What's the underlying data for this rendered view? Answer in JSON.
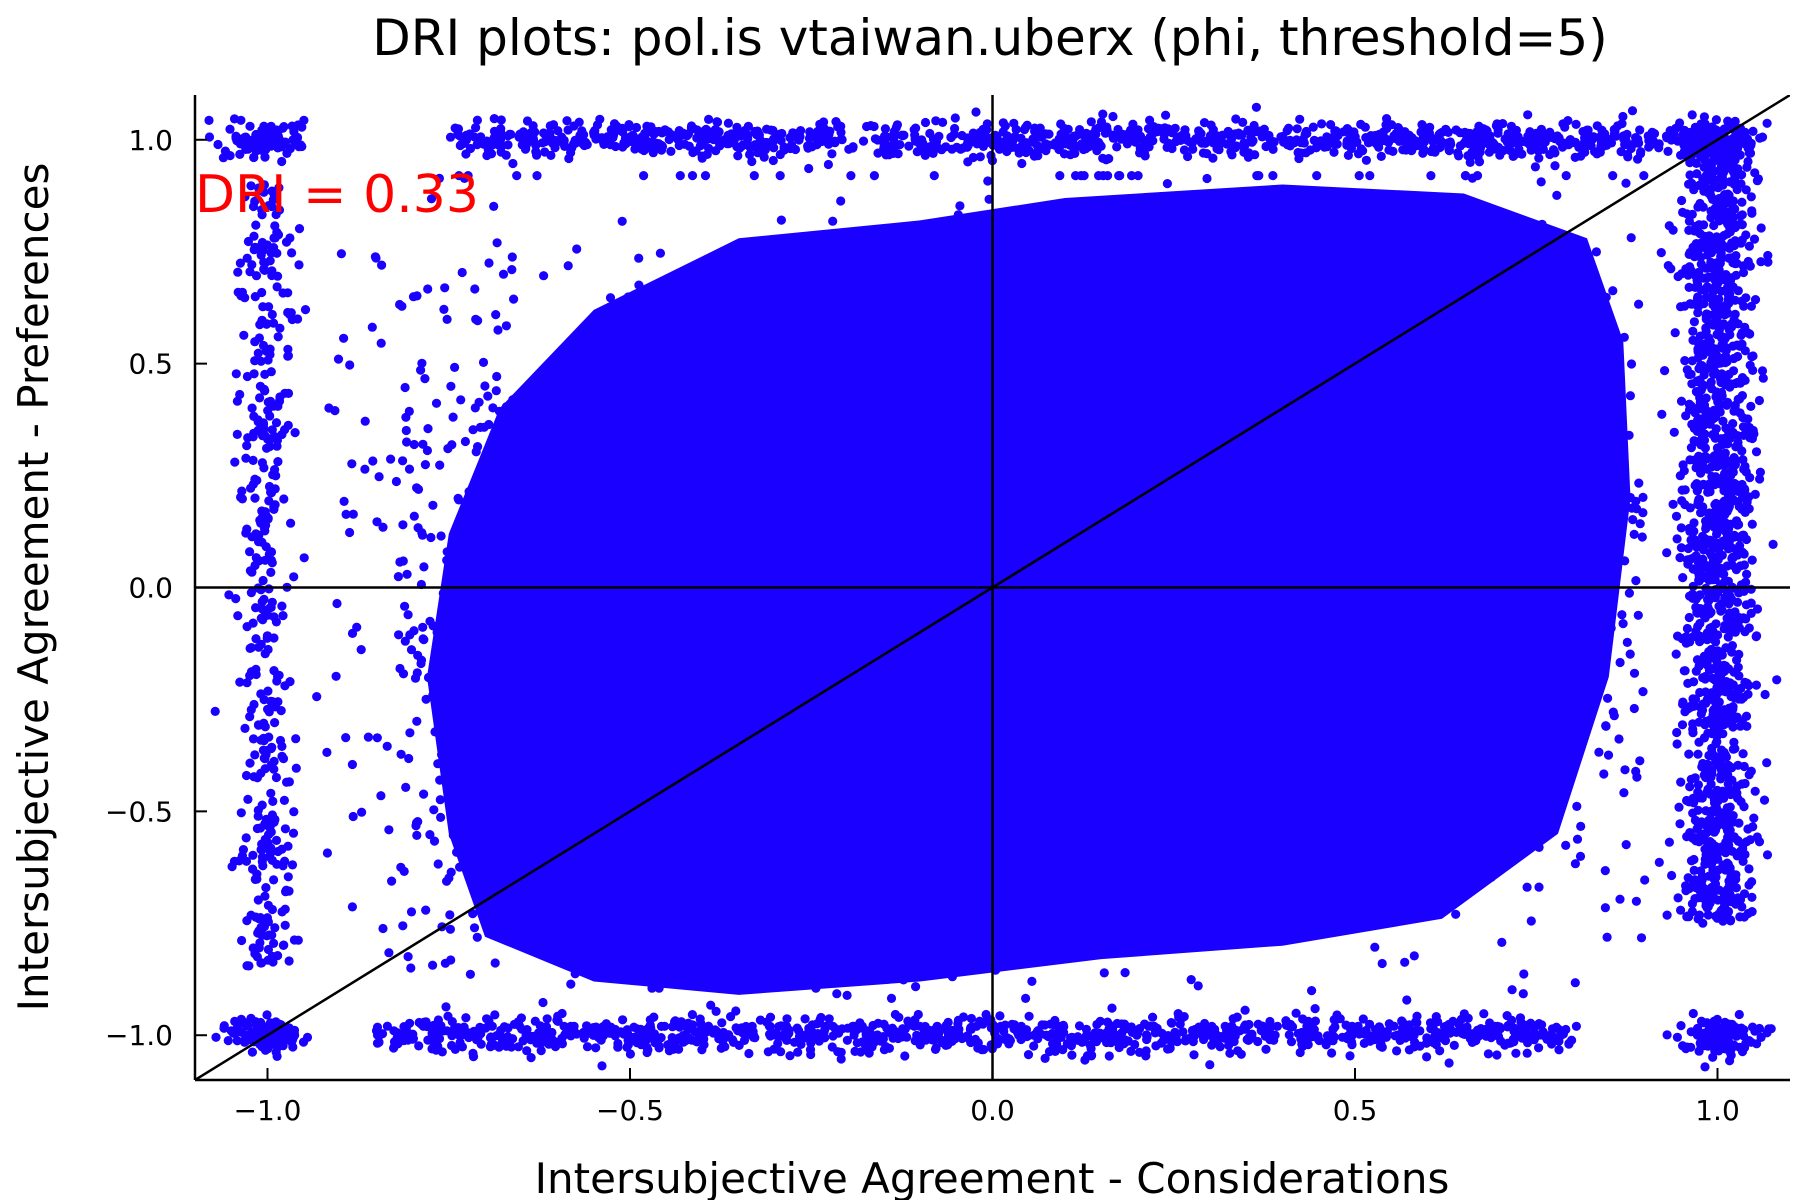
{
  "chart_data": {
    "type": "scatter",
    "title": "DRI plots: pol.is vtaiwan.uberx (phi, threshold=5)",
    "xlabel": "Intersubjective Agreement - Considerations",
    "ylabel": "Intersubjective Agreement - Preferences",
    "xlim": [
      -1.1,
      1.1
    ],
    "ylim": [
      -1.1,
      1.1
    ],
    "xticks": [
      -1.0,
      -0.5,
      0.0,
      0.5,
      1.0
    ],
    "xtick_labels": [
      "−1.0",
      "−0.5",
      "0.0",
      "0.5",
      "1.0"
    ],
    "yticks": [
      -1.0,
      -0.5,
      0.0,
      0.5,
      1.0
    ],
    "ytick_labels": [
      "−1.0",
      "−0.5",
      "0.0",
      "0.5",
      "1.0"
    ],
    "grid": false,
    "legend": "none",
    "reference_lines": [
      {
        "kind": "vertical",
        "x": 0
      },
      {
        "kind": "horizontal",
        "y": 0
      },
      {
        "kind": "diagonal",
        "slope": 1,
        "intercept": 0
      }
    ],
    "annotation": {
      "text": "DRI = 0.33",
      "x": -1.1,
      "y": 0.88,
      "color": "#ff0000"
    },
    "point_color": "#1a00ff",
    "clusters": [
      {
        "region": "main body",
        "x_range": [
          -0.8,
          0.88
        ],
        "y_range": [
          -0.9,
          0.9
        ],
        "density": "very high"
      },
      {
        "region": "top band",
        "x_range": [
          -0.75,
          1.0
        ],
        "y_range": [
          0.95,
          1.05
        ]
      },
      {
        "region": "bottom band",
        "x_range": [
          -0.85,
          0.8
        ],
        "y_range": [
          -1.05,
          -0.95
        ]
      },
      {
        "region": "left column",
        "x_range": [
          -1.05,
          -0.95
        ],
        "y_range": [
          -0.85,
          0.9
        ]
      },
      {
        "region": "right column",
        "x_range": [
          0.95,
          1.06
        ],
        "y_range": [
          -0.75,
          1.0
        ],
        "density": "high"
      },
      {
        "region": "top-left corner",
        "x": -1.0,
        "y": 1.0
      },
      {
        "region": "bottom-left corner",
        "x": -1.0,
        "y": -1.0
      },
      {
        "region": "top-right corner",
        "x": 1.0,
        "y": 1.0
      },
      {
        "region": "bottom-right corner",
        "x": 1.0,
        "y": -1.0
      }
    ]
  }
}
